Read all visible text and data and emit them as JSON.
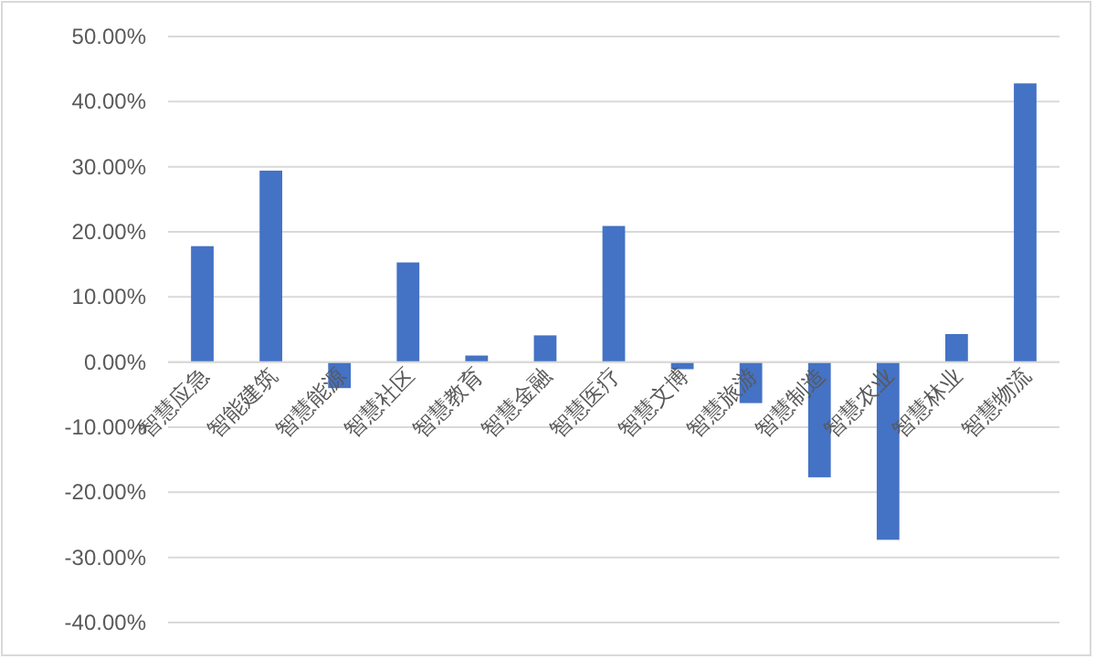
{
  "chart_data": {
    "type": "bar",
    "categories": [
      "智慧应急",
      "智能建筑",
      "智慧能源",
      "智慧社区",
      "智慧教育",
      "智慧金融",
      "智慧医疗",
      "智慧文博",
      "智慧旅游",
      "智慧制造",
      "智慧农业",
      "智慧林业",
      "智慧物流"
    ],
    "values": [
      17.8,
      29.4,
      -4.0,
      15.3,
      1.0,
      4.1,
      20.9,
      -1.1,
      -6.3,
      -17.7,
      -27.3,
      4.3,
      42.8
    ],
    "color": "#4472c4",
    "ylim": [
      -40,
      50
    ],
    "yticks": [
      {
        "value": -40,
        "label": "-40.00%"
      },
      {
        "value": -30,
        "label": "-30.00%"
      },
      {
        "value": -20,
        "label": "-20.00%"
      },
      {
        "value": -10,
        "label": "-10.00%"
      },
      {
        "value": 0,
        "label": "0.00%"
      },
      {
        "value": 10,
        "label": "10.00%"
      },
      {
        "value": 20,
        "label": "20.00%"
      },
      {
        "value": 30,
        "label": "30.00%"
      },
      {
        "value": 40,
        "label": "40.00%"
      },
      {
        "value": 50,
        "label": "50.00%"
      }
    ],
    "grid": "y"
  }
}
